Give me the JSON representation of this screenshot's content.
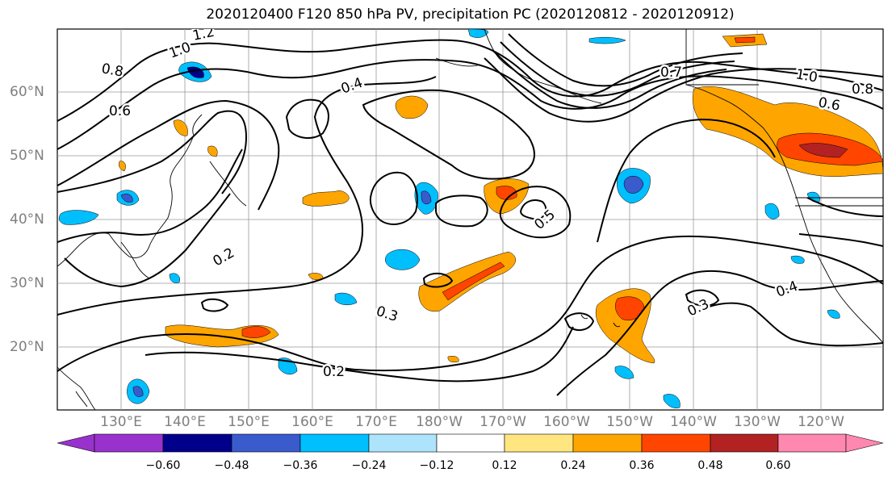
{
  "title": "2020120400 F120 850 hPa PV, precipitation PC (2020120812 - 2020120912)",
  "lat_labels": [
    {
      "text": "60°N",
      "lat": 60
    },
    {
      "text": "50°N",
      "lat": 50
    },
    {
      "text": "40°N",
      "lat": 40
    },
    {
      "text": "30°N",
      "lat": 30
    },
    {
      "text": "20°N",
      "lat": 20
    }
  ],
  "lon_labels": [
    "130°E",
    "140°E",
    "150°E",
    "160°E",
    "170°E",
    "180°W",
    "170°W",
    "160°W",
    "150°W",
    "140°W",
    "130°W",
    "120°W"
  ],
  "contour_labels": [
    "1.2",
    "1.0",
    "0.8",
    "0.6",
    "0.4",
    "0.2",
    "0.3",
    "0.5",
    "0.7",
    "1.0",
    "0.8",
    "0.6",
    "0.4",
    "0.3",
    "0.2"
  ],
  "colorbar": {
    "tick_labels": [
      "−0.60",
      "−0.48",
      "−0.36",
      "−0.24",
      "−0.12",
      "0.12",
      "0.24",
      "0.36",
      "0.48",
      "0.60"
    ],
    "colors": [
      "#9932cc",
      "#00008b",
      "#3a5bcc",
      "#00bfff",
      "#aee4fb",
      "#ffffff",
      "#ffe680",
      "#ffa500",
      "#ff4500",
      "#b22222",
      "#ff88b0"
    ]
  }
}
